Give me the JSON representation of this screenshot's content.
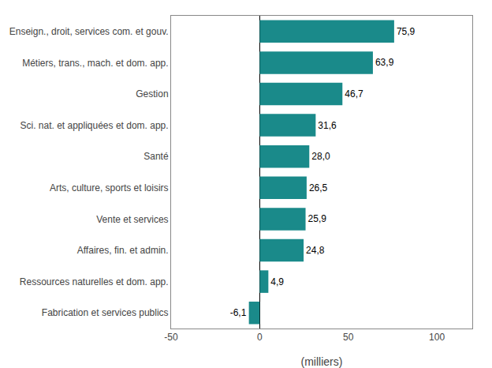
{
  "chart_data": {
    "type": "bar",
    "orientation": "horizontal",
    "categories": [
      "Fabrication et services publics",
      "Ressources naturelles et dom. app.",
      "Affaires, fin. et admin.",
      "Vente et services",
      "Arts, culture, sports et loisirs",
      "Santé",
      "Sci. nat. et appliquées et dom. app.",
      "Gestion",
      "Métiers, trans., mach. et dom. app.",
      "Enseign., droit, services com. et gouv."
    ],
    "values": [
      -6.1,
      4.9,
      24.8,
      25.9,
      26.5,
      28.0,
      31.6,
      46.7,
      63.9,
      75.9
    ],
    "value_labels": [
      "-6,1",
      "4,9",
      "24,8",
      "25,9",
      "26,5",
      "28,0",
      "31,6",
      "46,7",
      "63,9",
      "75,9"
    ],
    "data_labels": true,
    "color": "#1a8a8a",
    "xlabel": "(milliers)",
    "xlim": [
      -50,
      120
    ],
    "xticks": [
      -50,
      0,
      50,
      100
    ],
    "grid": false
  }
}
